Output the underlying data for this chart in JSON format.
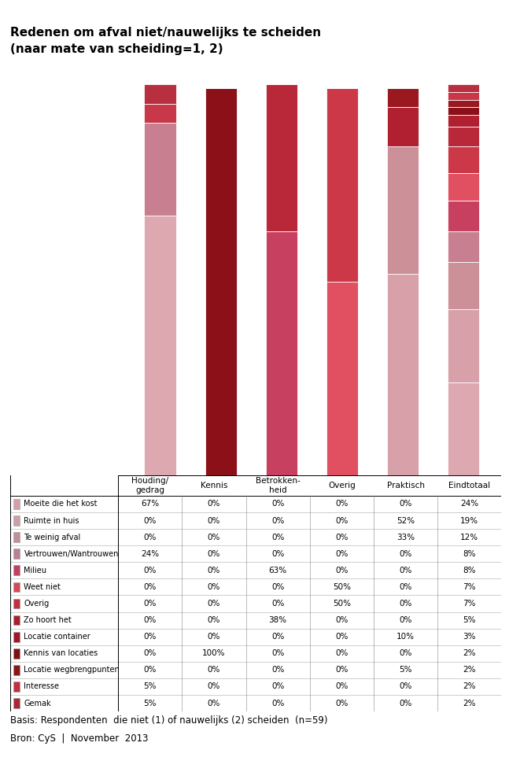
{
  "title_line1": "Redenen om afval niet/nauwelijks te scheiden",
  "title_line2": "(naar mate van scheiding=1, 2)",
  "columns": [
    "Houding/\ngedrag",
    "Kennis",
    "Betrokken-\nheid",
    "Overig",
    "Praktisch",
    "Eindtotaal"
  ],
  "col_headers_display": [
    "Houding/\ngedrag",
    "Kennis",
    "Betrokken-\nheid",
    "Overig",
    "Praktisch",
    "Eindtotaal"
  ],
  "row_labels": [
    "Moeite die het kost",
    "Ruimte in huis",
    "Te weinig afval",
    "Vertrouwen/Wantrouwen",
    "Milieu",
    "Weet niet",
    "Overig",
    "Zo hoort het",
    "Locatie container",
    "Kennis van locaties",
    "Locatie wegbrengpunten",
    "Interesse",
    "Gemak"
  ],
  "row_colors_bar": [
    "#dea8b0",
    "#d8a0a8",
    "#cc9098",
    "#c88090",
    "#c84060",
    "#e05060",
    "#cc3848",
    "#b82838",
    "#b02030",
    "#8b1018",
    "#9a1820",
    "#c83848",
    "#b83040"
  ],
  "row_colors_legend": [
    "#d4a0a8",
    "#cca0a8",
    "#c09098",
    "#b88090",
    "#c04060",
    "#d84858",
    "#c03040",
    "#a82030",
    "#a01828",
    "#801010",
    "#881818",
    "#c03040",
    "#a82838"
  ],
  "values": [
    [
      67,
      0,
      0,
      0,
      0,
      24
    ],
    [
      0,
      0,
      0,
      0,
      52,
      19
    ],
    [
      0,
      0,
      0,
      0,
      33,
      12
    ],
    [
      24,
      0,
      0,
      0,
      0,
      8
    ],
    [
      0,
      0,
      63,
      0,
      0,
      8
    ],
    [
      0,
      0,
      0,
      50,
      0,
      7
    ],
    [
      0,
      0,
      0,
      50,
      0,
      7
    ],
    [
      0,
      0,
      38,
      0,
      0,
      5
    ],
    [
      0,
      0,
      0,
      0,
      10,
      3
    ],
    [
      0,
      100,
      0,
      0,
      0,
      2
    ],
    [
      0,
      0,
      0,
      0,
      5,
      2
    ],
    [
      5,
      0,
      0,
      0,
      0,
      2
    ],
    [
      5,
      0,
      0,
      0,
      0,
      2
    ]
  ],
  "table_values": [
    [
      "67%",
      "0%",
      "0%",
      "0%",
      "0%",
      "24%"
    ],
    [
      "0%",
      "0%",
      "0%",
      "0%",
      "52%",
      "19%"
    ],
    [
      "0%",
      "0%",
      "0%",
      "0%",
      "33%",
      "12%"
    ],
    [
      "24%",
      "0%",
      "0%",
      "0%",
      "0%",
      "8%"
    ],
    [
      "0%",
      "0%",
      "63%",
      "0%",
      "0%",
      "8%"
    ],
    [
      "0%",
      "0%",
      "0%",
      "50%",
      "0%",
      "7%"
    ],
    [
      "0%",
      "0%",
      "0%",
      "50%",
      "0%",
      "7%"
    ],
    [
      "0%",
      "0%",
      "38%",
      "0%",
      "0%",
      "5%"
    ],
    [
      "0%",
      "0%",
      "0%",
      "0%",
      "10%",
      "3%"
    ],
    [
      "0%",
      "100%",
      "0%",
      "0%",
      "0%",
      "2%"
    ],
    [
      "0%",
      "0%",
      "0%",
      "0%",
      "5%",
      "2%"
    ],
    [
      "5%",
      "0%",
      "0%",
      "0%",
      "0%",
      "2%"
    ],
    [
      "5%",
      "0%",
      "0%",
      "0%",
      "0%",
      "2%"
    ]
  ],
  "footer1": "Basis: Respondenten  die niet (1) of nauwelijks (2) scheiden  (n=59)",
  "footer2": "Bron: CyS  |  November  2013"
}
